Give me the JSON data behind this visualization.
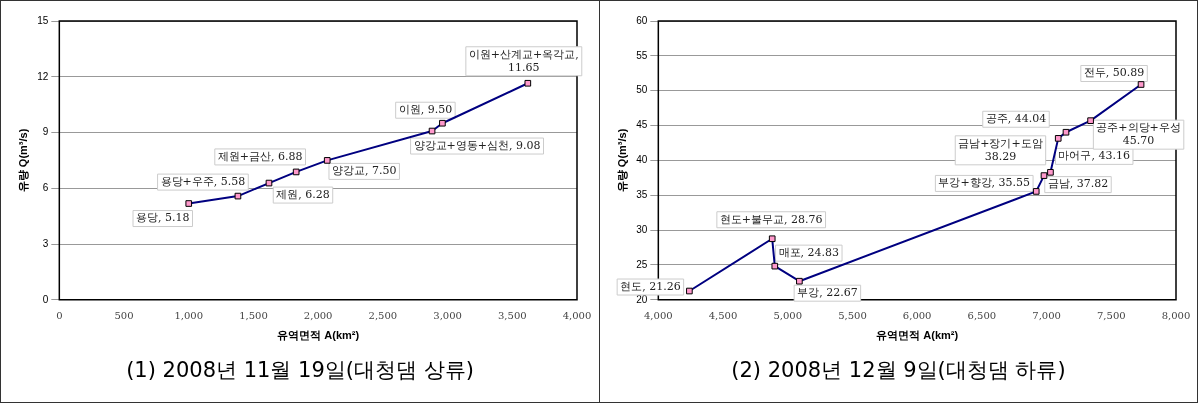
{
  "chart_data": [
    {
      "type": "line",
      "title": "(1) 2008년 11월 19일(대청댐 상류)",
      "xlabel": "유역면적 A(km²)",
      "ylabel": "유량 Q(m³/s)",
      "x": [
        1000,
        1380,
        1620,
        1830,
        2070,
        2880,
        2960,
        3620
      ],
      "series": [
        {
          "color": "#000080",
          "values": [
            5.18,
            5.58,
            6.28,
            6.88,
            7.5,
            9.08,
            9.5,
            11.65
          ]
        }
      ],
      "xlim": [
        0,
        4000
      ],
      "xticks": [
        0,
        {
          "value": 500,
          "label": "500"
        },
        {
          "value": 1000,
          "label": "1,000"
        },
        {
          "value": 1500,
          "label": "1,500"
        },
        {
          "value": 2000,
          "label": "2,000"
        },
        {
          "value": 2500,
          "label": "2,500"
        },
        {
          "value": 3000,
          "label": "3,000"
        },
        {
          "value": 3500,
          "label": "3,500"
        },
        {
          "value": 4000,
          "label": "4,000"
        }
      ],
      "ylim": [
        0,
        15
      ],
      "yticks": [
        0,
        3,
        6,
        9,
        12,
        15
      ],
      "grid": "y",
      "marker": "square",
      "line_style": "solid",
      "legend": false,
      "annotations": [
        {
          "text": "용당, 5.18",
          "x": 1000,
          "y": 5.18
        },
        {
          "text": "용당+우주, 5.58",
          "x": 1380,
          "y": 5.58
        },
        {
          "text": "제원, 6.28",
          "x": 1620,
          "y": 6.28
        },
        {
          "text": "제원+금산, 6.88",
          "x": 1830,
          "y": 6.88
        },
        {
          "text": "양강교, 7.50",
          "x": 2070,
          "y": 7.5
        },
        {
          "text": "양강교+영동+심천, 9.08",
          "x": 2880,
          "y": 9.08
        },
        {
          "text": "이원, 9.50",
          "x": 2960,
          "y": 9.5
        },
        {
          "text": "이원+산계교+옥각교,\n11.65",
          "x": 3620,
          "y": 11.65
        }
      ]
    },
    {
      "type": "line",
      "title": "(2) 2008년 12월 9일(대청댐 하류)",
      "xlabel": "유역면적 A(km²)",
      "ylabel": "유량 Q(m³/s)",
      "x": [
        4240,
        4880,
        4900,
        5090,
        6920,
        6980,
        7030,
        7090,
        7150,
        7340,
        7730
      ],
      "series": [
        {
          "color": "#000080",
          "values": [
            21.26,
            28.76,
            24.83,
            22.67,
            35.55,
            37.82,
            38.29,
            43.16,
            44.04,
            45.7,
            50.89
          ]
        }
      ],
      "xlim": [
        4000,
        8000
      ],
      "xticks": [
        {
          "value": 4000,
          "label": "4,000"
        },
        {
          "value": 4500,
          "label": "4,500"
        },
        {
          "value": 5000,
          "label": "5,000"
        },
        {
          "value": 5500,
          "label": "5,500"
        },
        {
          "value": 6000,
          "label": "6,000"
        },
        {
          "value": 6500,
          "label": "6,500"
        },
        {
          "value": 7000,
          "label": "7,000"
        },
        {
          "value": 7500,
          "label": "7,500"
        },
        {
          "value": 8000,
          "label": "8,000"
        }
      ],
      "ylim": [
        20,
        60
      ],
      "yticks": [
        20,
        25,
        30,
        35,
        40,
        45,
        50,
        55,
        60
      ],
      "grid": "y",
      "marker": "square",
      "line_style": "solid",
      "legend": false,
      "annotations": [
        {
          "text": "현도, 21.26",
          "x": 4240,
          "y": 21.26
        },
        {
          "text": "현도+불무교, 28.76",
          "x": 4880,
          "y": 28.76
        },
        {
          "text": "매포, 24.83",
          "x": 4900,
          "y": 24.83
        },
        {
          "text": "부강, 22.67",
          "x": 5090,
          "y": 22.67
        },
        {
          "text": "부강+향강, 35.55",
          "x": 6920,
          "y": 35.55
        },
        {
          "text": "금남, 37.82",
          "x": 6980,
          "y": 37.82
        },
        {
          "text": "금남+장기+도암\n38.29",
          "x": 7030,
          "y": 38.29
        },
        {
          "text": "마어구, 43.16",
          "x": 7090,
          "y": 43.16
        },
        {
          "text": "공주, 44.04",
          "x": 7150,
          "y": 44.04
        },
        {
          "text": "공주+의당+우성\n45.70",
          "x": 7340,
          "y": 45.7
        },
        {
          "text": "전두, 50.89",
          "x": 7730,
          "y": 50.89
        }
      ]
    }
  ]
}
